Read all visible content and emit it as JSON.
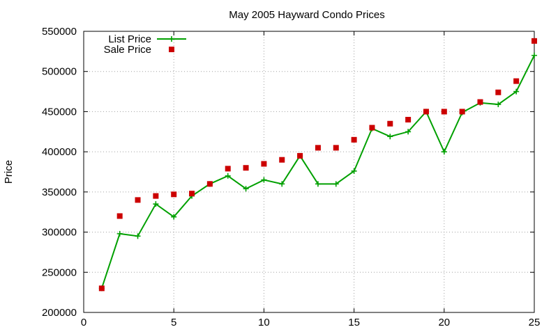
{
  "chart_data": {
    "type": "line",
    "title": "May 2005 Hayward Condo Prices",
    "xlabel": "",
    "ylabel": "Price",
    "xlim": [
      0,
      25
    ],
    "ylim": [
      200000,
      550000
    ],
    "xticks": [
      0,
      5,
      10,
      15,
      20,
      25
    ],
    "yticks": [
      200000,
      250000,
      300000,
      350000,
      400000,
      450000,
      500000,
      550000
    ],
    "grid": true,
    "legend_position": "top-left",
    "series": [
      {
        "name": "List Price",
        "style": "linespoints",
        "marker": "plus",
        "color": "#00a000",
        "x": [
          1,
          2,
          3,
          4,
          5,
          6,
          7,
          8,
          9,
          10,
          11,
          12,
          13,
          14,
          15,
          16,
          17,
          18,
          19,
          20,
          21,
          22,
          23,
          24,
          25
        ],
        "y": [
          230000,
          298000,
          295000,
          335000,
          319000,
          345000,
          360000,
          370000,
          354000,
          365000,
          360000,
          395000,
          360000,
          360000,
          376000,
          429000,
          419000,
          425000,
          450000,
          400000,
          449000,
          461000,
          459000,
          475000,
          520000
        ]
      },
      {
        "name": "Sale Price",
        "style": "points",
        "marker": "square",
        "color": "#cc0000",
        "x": [
          1,
          2,
          3,
          4,
          5,
          6,
          7,
          8,
          9,
          10,
          11,
          12,
          13,
          14,
          15,
          16,
          17,
          18,
          19,
          20,
          21,
          22,
          23,
          24,
          25
        ],
        "y": [
          230000,
          320000,
          340000,
          345000,
          347000,
          348000,
          360000,
          379000,
          380000,
          385000,
          390000,
          395000,
          405000,
          405000,
          415000,
          430000,
          435000,
          440000,
          450000,
          450000,
          450000,
          462000,
          474000,
          488000,
          538000
        ]
      }
    ]
  }
}
